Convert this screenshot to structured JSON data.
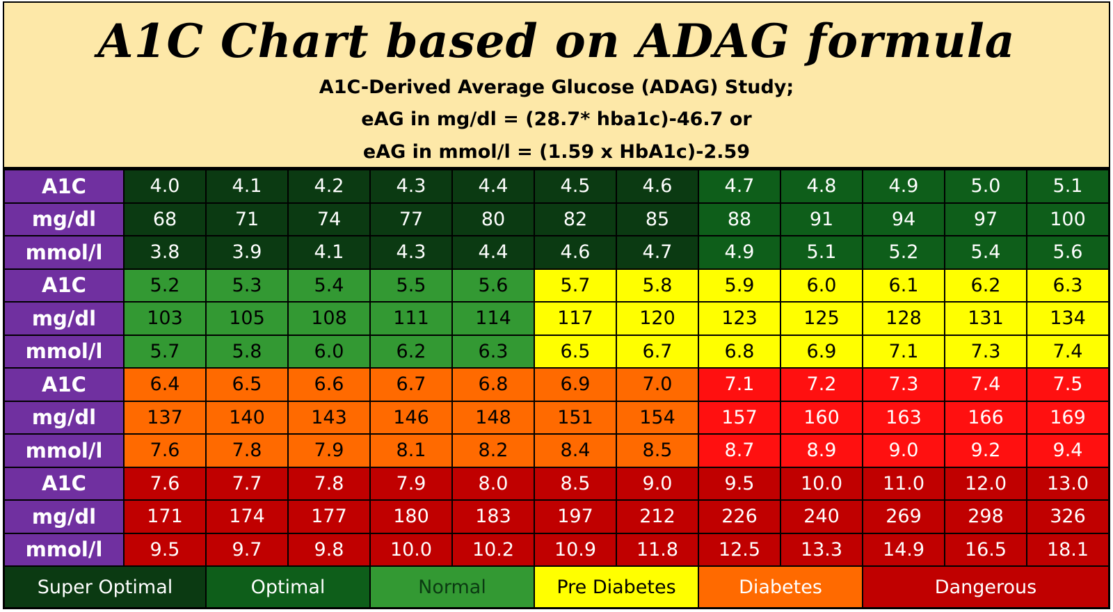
{
  "header": {
    "title": "A1C Chart based on ADAG formula",
    "subtitle_lines": [
      "A1C-Derived Average Glucose (ADAG) Study;",
      "eAG in mg/dl = (28.7* hba1c)-46.7 or",
      "eAG in mmol/l = (1.59 x HbA1c)-2.59"
    ]
  },
  "chart_data": {
    "type": "table",
    "row_labels": [
      "A1C",
      "mg/dl",
      "mmol/l"
    ],
    "colors": {
      "super_optimal": "#0b3a12",
      "optimal": "#0e5e1a",
      "normal": "#339933",
      "pre_diabetes": "#ffff00",
      "diabetes": "#ff6a00",
      "dangerous_light": "#ff1010",
      "dangerous": "#c00000",
      "label_bg": "#7030a0",
      "header_bg": "#fde8a8"
    },
    "blocks": [
      {
        "a1c": [
          "4.0",
          "4.1",
          "4.2",
          "4.3",
          "4.4",
          "4.5",
          "4.6",
          "4.7",
          "4.8",
          "4.9",
          "5.0",
          "5.1"
        ],
        "mgdl": [
          "68",
          "71",
          "74",
          "77",
          "80",
          "82",
          "85",
          "88",
          "91",
          "94",
          "97",
          "100"
        ],
        "mmol": [
          "3.8",
          "3.9",
          "4.1",
          "4.3",
          "4.4",
          "4.6",
          "4.7",
          "4.9",
          "5.1",
          "5.2",
          "5.4",
          "5.6"
        ],
        "cell_categories": [
          "super_optimal",
          "super_optimal",
          "super_optimal",
          "super_optimal",
          "super_optimal",
          "super_optimal",
          "super_optimal",
          "optimal",
          "optimal",
          "optimal",
          "optimal",
          "optimal"
        ]
      },
      {
        "a1c": [
          "5.2",
          "5.3",
          "5.4",
          "5.5",
          "5.6",
          "5.7",
          "5.8",
          "5.9",
          "6.0",
          "6.1",
          "6.2",
          "6.3"
        ],
        "mgdl": [
          "103",
          "105",
          "108",
          "111",
          "114",
          "117",
          "120",
          "123",
          "125",
          "128",
          "131",
          "134"
        ],
        "mmol": [
          "5.7",
          "5.8",
          "6.0",
          "6.2",
          "6.3",
          "6.5",
          "6.7",
          "6.8",
          "6.9",
          "7.1",
          "7.3",
          "7.4"
        ],
        "cell_categories": [
          "normal",
          "normal",
          "normal",
          "normal",
          "normal",
          "pre_diabetes",
          "pre_diabetes",
          "pre_diabetes",
          "pre_diabetes",
          "pre_diabetes",
          "pre_diabetes",
          "pre_diabetes"
        ]
      },
      {
        "a1c": [
          "6.4",
          "6.5",
          "6.6",
          "6.7",
          "6.8",
          "6.9",
          "7.0",
          "7.1",
          "7.2",
          "7.3",
          "7.4",
          "7.5"
        ],
        "mgdl": [
          "137",
          "140",
          "143",
          "146",
          "148",
          "151",
          "154",
          "157",
          "160",
          "163",
          "166",
          "169"
        ],
        "mmol": [
          "7.6",
          "7.8",
          "7.9",
          "8.1",
          "8.2",
          "8.4",
          "8.5",
          "8.7",
          "8.9",
          "9.0",
          "9.2",
          "9.4"
        ],
        "cell_categories": [
          "diabetes",
          "diabetes",
          "diabetes",
          "diabetes",
          "diabetes",
          "diabetes",
          "diabetes",
          "dangerous_light",
          "dangerous_light",
          "dangerous_light",
          "dangerous_light",
          "dangerous_light"
        ]
      },
      {
        "a1c": [
          "7.6",
          "7.7",
          "7.8",
          "7.9",
          "8.0",
          "8.5",
          "9.0",
          "9.5",
          "10.0",
          "11.0",
          "12.0",
          "13.0"
        ],
        "mgdl": [
          "171",
          "174",
          "177",
          "180",
          "183",
          "197",
          "212",
          "226",
          "240",
          "269",
          "298",
          "326"
        ],
        "mmol": [
          "9.5",
          "9.7",
          "9.8",
          "10.0",
          "10.2",
          "10.9",
          "11.8",
          "12.5",
          "13.3",
          "14.9",
          "16.5",
          "18.1"
        ],
        "cell_categories": [
          "dangerous",
          "dangerous",
          "dangerous",
          "dangerous",
          "dangerous",
          "dangerous",
          "dangerous",
          "dangerous",
          "dangerous",
          "dangerous",
          "dangerous",
          "dangerous"
        ]
      }
    ],
    "legend": [
      {
        "label": "Super Optimal",
        "category": "super_optimal",
        "text_color": "#ffffff"
      },
      {
        "label": "Optimal",
        "category": "optimal",
        "text_color": "#ffffff"
      },
      {
        "label": "Normal",
        "category": "normal",
        "text_color": "#0b3a12"
      },
      {
        "label": "Pre Diabetes",
        "category": "pre_diabetes",
        "text_color": "#000000"
      },
      {
        "label": "Diabetes",
        "category": "diabetes",
        "text_color": "#ffffff"
      },
      {
        "label": "Dangerous",
        "category": "dangerous",
        "text_color": "#ffffff"
      }
    ]
  }
}
